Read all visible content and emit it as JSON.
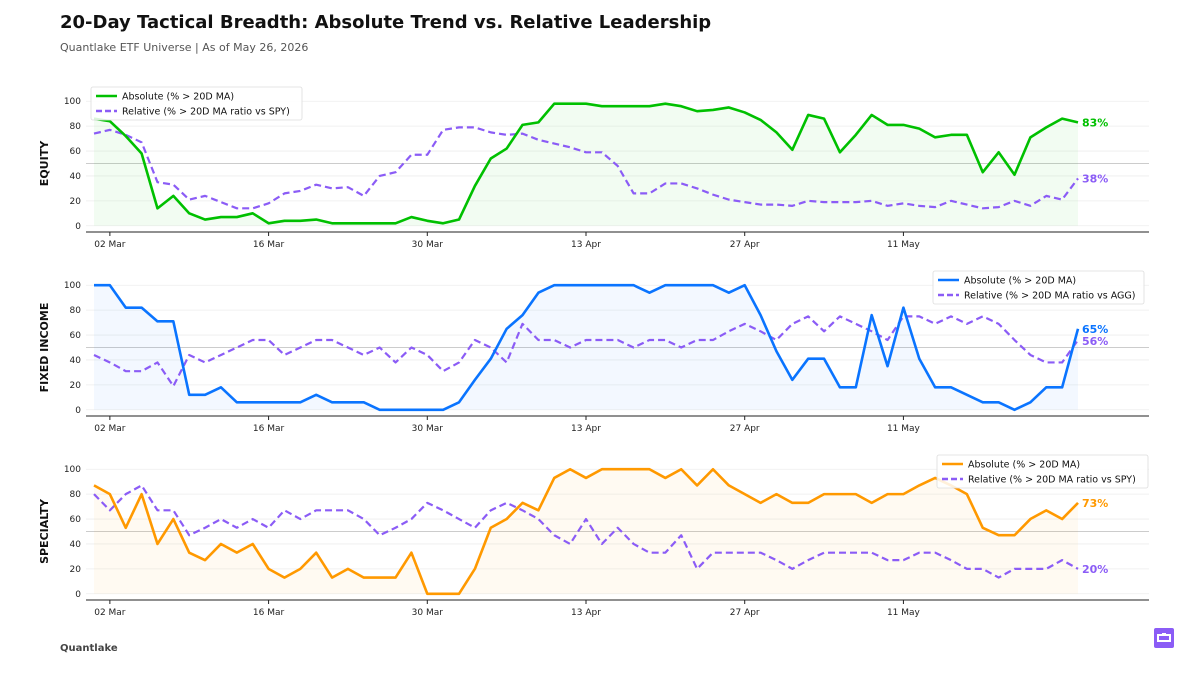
{
  "header": {
    "title": "20-Day Tactical Breadth: Absolute Trend vs. Relative Leadership",
    "subtitle": "Quantlake ETF Universe  |  As of May 26, 2026"
  },
  "footer": {
    "brand": "Quantlake"
  },
  "colors": {
    "relative": "#8b5cf6",
    "axis": "#222222",
    "grid": "#eeeeee",
    "badge": "#8b5cf6"
  },
  "chart_data": [
    {
      "type": "line",
      "ylabel": "EQUITY",
      "ylim": [
        -5,
        105
      ],
      "yticks": [
        0,
        20,
        40,
        60,
        80,
        100
      ],
      "reference_line": 50,
      "x": [
        "2026-02-27",
        "2026-03-02",
        "2026-03-03",
        "2026-03-04",
        "2026-03-05",
        "2026-03-06",
        "2026-03-09",
        "2026-03-10",
        "2026-03-11",
        "2026-03-12",
        "2026-03-13",
        "2026-03-16",
        "2026-03-17",
        "2026-03-18",
        "2026-03-19",
        "2026-03-20",
        "2026-03-23",
        "2026-03-24",
        "2026-03-25",
        "2026-03-26",
        "2026-03-27",
        "2026-03-30",
        "2026-03-31",
        "2026-04-01",
        "2026-04-02",
        "2026-04-03",
        "2026-04-06",
        "2026-04-07",
        "2026-04-08",
        "2026-04-09",
        "2026-04-10",
        "2026-04-13",
        "2026-04-14",
        "2026-04-15",
        "2026-04-16",
        "2026-04-17",
        "2026-04-20",
        "2026-04-21",
        "2026-04-22",
        "2026-04-23",
        "2026-04-24",
        "2026-04-27",
        "2026-04-28",
        "2026-04-29",
        "2026-04-30",
        "2026-05-01",
        "2026-05-04",
        "2026-05-05",
        "2026-05-06",
        "2026-05-07",
        "2026-05-08",
        "2026-05-11",
        "2026-05-12",
        "2026-05-13",
        "2026-05-14",
        "2026-05-15",
        "2026-05-18",
        "2026-05-19",
        "2026-05-20",
        "2026-05-21",
        "2026-05-22",
        "2026-05-25",
        "2026-05-26"
      ],
      "xticks": [
        {
          "date": "2026-03-02",
          "label": "02 Mar"
        },
        {
          "date": "2026-03-16",
          "label": "16 Mar"
        },
        {
          "date": "2026-03-30",
          "label": "30 Mar"
        },
        {
          "date": "2026-04-13",
          "label": "13 Apr"
        },
        {
          "date": "2026-04-27",
          "label": "27 Apr"
        },
        {
          "date": "2026-05-11",
          "label": "11 May"
        }
      ],
      "legend_position": "top-left",
      "series": [
        {
          "name": "Absolute (% > 20D MA)",
          "color": "#00c000",
          "style": "solid",
          "end_label": "83%",
          "values": [
            86,
            84,
            72,
            58,
            14,
            24,
            10,
            5,
            7,
            7,
            10,
            2,
            4,
            4,
            5,
            2,
            2,
            2,
            2,
            2,
            7,
            4,
            2,
            5,
            32,
            54,
            62,
            81,
            83,
            98,
            98,
            98,
            96,
            96,
            96,
            96,
            98,
            96,
            92,
            93,
            95,
            91,
            85,
            75,
            61,
            89,
            86,
            59,
            73,
            89,
            81,
            81,
            78,
            71,
            73,
            73,
            43,
            59,
            41,
            71,
            79,
            86,
            83
          ]
        },
        {
          "name": "Relative (% > 20D MA ratio vs SPY)",
          "color": "#8b5cf6",
          "style": "dashed",
          "end_label": "38%",
          "values": [
            74,
            77,
            73,
            67,
            35,
            33,
            21,
            24,
            19,
            14,
            14,
            18,
            26,
            28,
            33,
            30,
            31,
            24,
            40,
            43,
            57,
            57,
            77,
            79,
            79,
            75,
            73,
            74,
            69,
            66,
            63,
            59,
            59,
            48,
            26,
            26,
            34,
            34,
            30,
            25,
            21,
            19,
            17,
            17,
            16,
            20,
            19,
            19,
            19,
            20,
            16,
            18,
            16,
            15,
            20,
            17,
            14,
            15,
            20,
            16,
            24,
            21,
            38
          ]
        }
      ]
    },
    {
      "type": "line",
      "ylabel": "FIXED INCOME",
      "ylim": [
        -5,
        105
      ],
      "yticks": [
        0,
        20,
        40,
        60,
        80,
        100
      ],
      "reference_line": 50,
      "x": [
        "2026-02-27",
        "2026-03-02",
        "2026-03-03",
        "2026-03-04",
        "2026-03-05",
        "2026-03-06",
        "2026-03-09",
        "2026-03-10",
        "2026-03-11",
        "2026-03-12",
        "2026-03-13",
        "2026-03-16",
        "2026-03-17",
        "2026-03-18",
        "2026-03-19",
        "2026-03-20",
        "2026-03-23",
        "2026-03-24",
        "2026-03-25",
        "2026-03-26",
        "2026-03-27",
        "2026-03-30",
        "2026-03-31",
        "2026-04-01",
        "2026-04-02",
        "2026-04-03",
        "2026-04-06",
        "2026-04-07",
        "2026-04-08",
        "2026-04-09",
        "2026-04-10",
        "2026-04-13",
        "2026-04-14",
        "2026-04-15",
        "2026-04-16",
        "2026-04-17",
        "2026-04-20",
        "2026-04-21",
        "2026-04-22",
        "2026-04-23",
        "2026-04-24",
        "2026-04-27",
        "2026-04-28",
        "2026-04-29",
        "2026-04-30",
        "2026-05-01",
        "2026-05-04",
        "2026-05-05",
        "2026-05-06",
        "2026-05-07",
        "2026-05-08",
        "2026-05-11",
        "2026-05-12",
        "2026-05-13",
        "2026-05-14",
        "2026-05-15",
        "2026-05-18",
        "2026-05-19",
        "2026-05-20",
        "2026-05-21",
        "2026-05-22",
        "2026-05-25",
        "2026-05-26"
      ],
      "xticks": [
        {
          "date": "2026-03-02",
          "label": "02 Mar"
        },
        {
          "date": "2026-03-16",
          "label": "16 Mar"
        },
        {
          "date": "2026-03-30",
          "label": "30 Mar"
        },
        {
          "date": "2026-04-13",
          "label": "13 Apr"
        },
        {
          "date": "2026-04-27",
          "label": "27 Apr"
        },
        {
          "date": "2026-05-11",
          "label": "11 May"
        }
      ],
      "legend_position": "top-right",
      "series": [
        {
          "name": "Absolute (% > 20D MA)",
          "color": "#0a74ff",
          "style": "solid",
          "end_label": "65%",
          "values": [
            100,
            100,
            82,
            82,
            71,
            71,
            12,
            12,
            18,
            6,
            6,
            6,
            6,
            6,
            12,
            6,
            6,
            6,
            0,
            0,
            0,
            0,
            0,
            6,
            24,
            41,
            65,
            76,
            94,
            100,
            100,
            100,
            100,
            100,
            100,
            94,
            100,
            100,
            100,
            100,
            94,
            100,
            76,
            47,
            24,
            41,
            41,
            18,
            18,
            76,
            35,
            82,
            41,
            18,
            18,
            12,
            6,
            6,
            0,
            6,
            18,
            18,
            65
          ]
        },
        {
          "name": "Relative (% > 20D MA ratio vs AGG)",
          "color": "#8b5cf6",
          "style": "dashed",
          "end_label": "56%",
          "values": [
            44,
            38,
            31,
            31,
            38,
            19,
            44,
            38,
            44,
            50,
            56,
            56,
            44,
            50,
            56,
            56,
            50,
            44,
            50,
            38,
            50,
            44,
            31,
            38,
            56,
            50,
            38,
            69,
            56,
            56,
            50,
            56,
            56,
            56,
            50,
            56,
            56,
            50,
            56,
            56,
            63,
            69,
            63,
            56,
            69,
            75,
            63,
            75,
            69,
            63,
            56,
            75,
            75,
            69,
            75,
            69,
            75,
            69,
            56,
            44,
            38,
            38,
            56
          ]
        }
      ]
    },
    {
      "type": "line",
      "ylabel": "SPECIALTY",
      "ylim": [
        -5,
        105
      ],
      "yticks": [
        0,
        20,
        40,
        60,
        80,
        100
      ],
      "reference_line": 50,
      "x": [
        "2026-02-27",
        "2026-03-02",
        "2026-03-03",
        "2026-03-04",
        "2026-03-05",
        "2026-03-06",
        "2026-03-09",
        "2026-03-10",
        "2026-03-11",
        "2026-03-12",
        "2026-03-13",
        "2026-03-16",
        "2026-03-17",
        "2026-03-18",
        "2026-03-19",
        "2026-03-20",
        "2026-03-23",
        "2026-03-24",
        "2026-03-25",
        "2026-03-26",
        "2026-03-27",
        "2026-03-30",
        "2026-03-31",
        "2026-04-01",
        "2026-04-02",
        "2026-04-03",
        "2026-04-06",
        "2026-04-07",
        "2026-04-08",
        "2026-04-09",
        "2026-04-10",
        "2026-04-13",
        "2026-04-14",
        "2026-04-15",
        "2026-04-16",
        "2026-04-17",
        "2026-04-20",
        "2026-04-21",
        "2026-04-22",
        "2026-04-23",
        "2026-04-24",
        "2026-04-27",
        "2026-04-28",
        "2026-04-29",
        "2026-04-30",
        "2026-05-01",
        "2026-05-04",
        "2026-05-05",
        "2026-05-06",
        "2026-05-07",
        "2026-05-08",
        "2026-05-11",
        "2026-05-12",
        "2026-05-13",
        "2026-05-14",
        "2026-05-15",
        "2026-05-18",
        "2026-05-19",
        "2026-05-20",
        "2026-05-21",
        "2026-05-22",
        "2026-05-25",
        "2026-05-26"
      ],
      "xticks": [
        {
          "date": "2026-03-02",
          "label": "02 Mar"
        },
        {
          "date": "2026-03-16",
          "label": "16 Mar"
        },
        {
          "date": "2026-03-30",
          "label": "30 Mar"
        },
        {
          "date": "2026-04-13",
          "label": "13 Apr"
        },
        {
          "date": "2026-04-27",
          "label": "27 Apr"
        },
        {
          "date": "2026-05-11",
          "label": "11 May"
        }
      ],
      "legend_position": "top-right",
      "series": [
        {
          "name": "Absolute (% > 20D MA)",
          "color": "#ff9900",
          "style": "solid",
          "end_label": "73%",
          "values": [
            87,
            80,
            53,
            80,
            40,
            60,
            33,
            27,
            40,
            33,
            40,
            20,
            13,
            20,
            33,
            13,
            20,
            13,
            13,
            13,
            33,
            0,
            0,
            0,
            20,
            53,
            60,
            73,
            67,
            93,
            100,
            93,
            100,
            100,
            100,
            100,
            93,
            100,
            87,
            100,
            87,
            80,
            73,
            80,
            73,
            73,
            80,
            80,
            80,
            73,
            80,
            80,
            87,
            93,
            87,
            80,
            53,
            47,
            47,
            60,
            67,
            60,
            73
          ]
        },
        {
          "name": "Relative (% > 20D MA ratio vs SPY)",
          "color": "#8b5cf6",
          "style": "dashed",
          "end_label": "20%",
          "values": [
            80,
            67,
            80,
            87,
            67,
            67,
            47,
            53,
            60,
            53,
            60,
            53,
            67,
            60,
            67,
            67,
            67,
            60,
            47,
            53,
            60,
            73,
            67,
            60,
            53,
            67,
            73,
            67,
            60,
            47,
            40,
            60,
            40,
            53,
            40,
            33,
            33,
            47,
            20,
            33,
            33,
            33,
            33,
            27,
            20,
            27,
            33,
            33,
            33,
            33,
            27,
            27,
            33,
            33,
            27,
            20,
            20,
            13,
            20,
            20,
            20,
            27,
            20
          ]
        }
      ]
    }
  ]
}
